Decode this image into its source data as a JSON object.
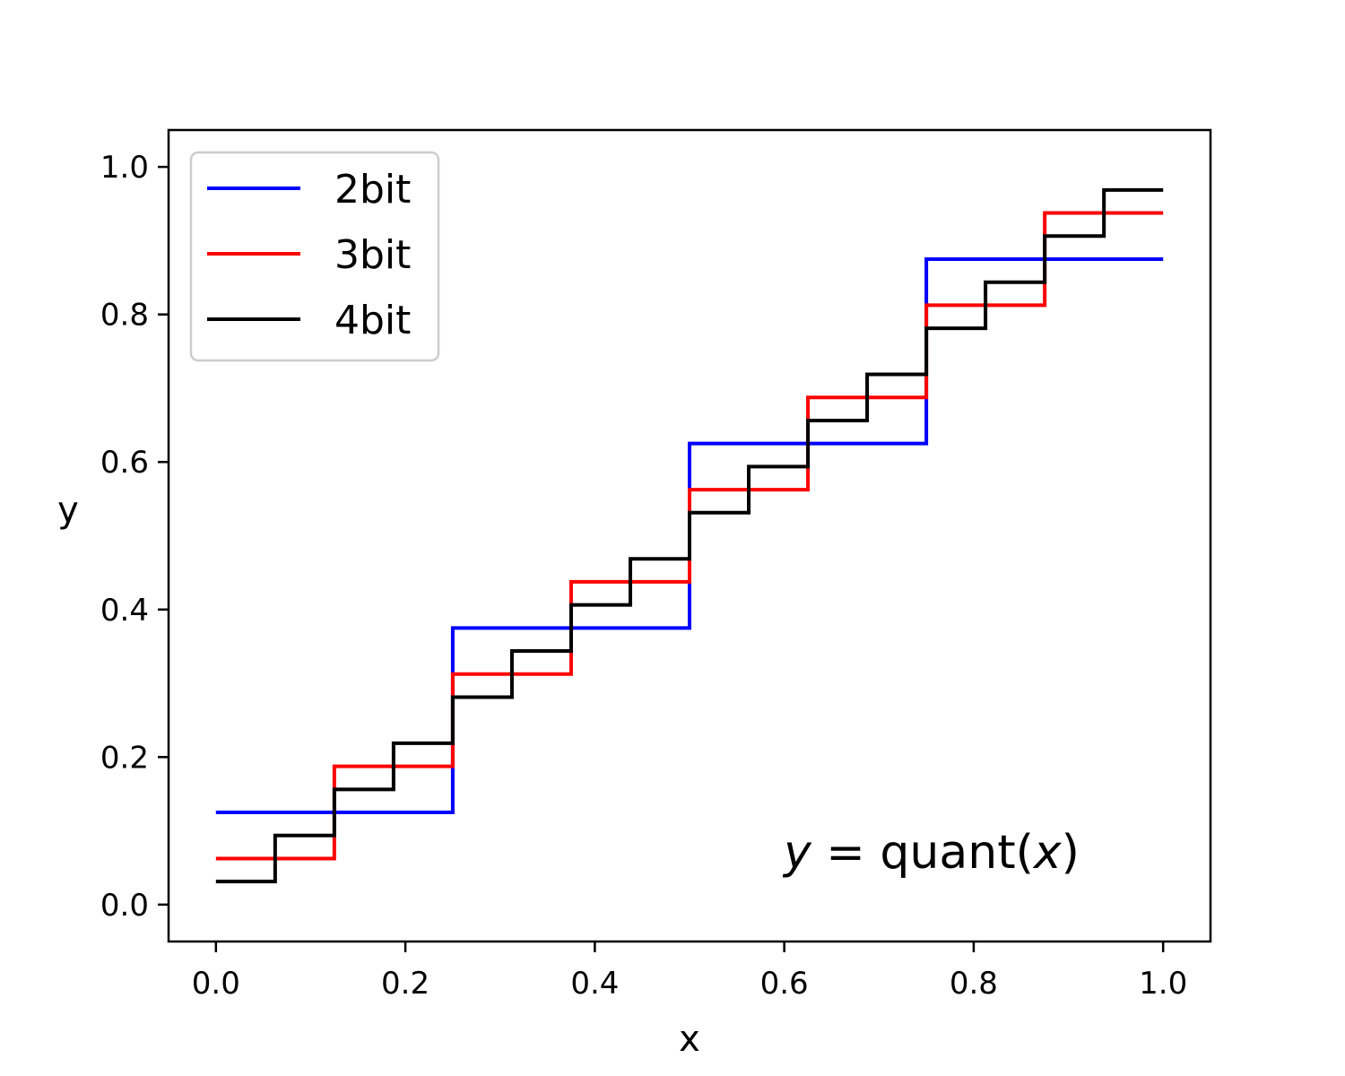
{
  "chart_data": {
    "type": "line",
    "drawstyle": "steps-post",
    "title": "",
    "xlabel": "x",
    "ylabel": "y",
    "xlim": [
      -0.05,
      1.05
    ],
    "ylim": [
      -0.05,
      1.05
    ],
    "xticks": [
      0.0,
      0.2,
      0.4,
      0.6,
      0.8,
      1.0
    ],
    "xtick_labels": [
      "0.0",
      "0.2",
      "0.4",
      "0.6",
      "0.8",
      "1.0"
    ],
    "yticks": [
      0.0,
      0.2,
      0.4,
      0.6,
      0.8,
      1.0
    ],
    "ytick_labels": [
      "0.0",
      "0.2",
      "0.4",
      "0.6",
      "0.8",
      "1.0"
    ],
    "grid": false,
    "legend_position": "top-left",
    "annotation": {
      "var": "y",
      "eq": " = quant(",
      "arg": "x",
      "close": ")",
      "position": "bottom-right"
    },
    "series": [
      {
        "name": "2bit",
        "color": "#0000ff",
        "x": [
          0.0,
          0.25,
          0.5,
          0.75,
          1.0
        ],
        "y": [
          0.125,
          0.375,
          0.625,
          0.875,
          0.875
        ]
      },
      {
        "name": "3bit",
        "color": "#ff0000",
        "x": [
          0.0,
          0.125,
          0.25,
          0.375,
          0.5,
          0.625,
          0.75,
          0.875,
          1.0
        ],
        "y": [
          0.0625,
          0.1875,
          0.3125,
          0.4375,
          0.5625,
          0.6875,
          0.8125,
          0.9375,
          0.9375
        ]
      },
      {
        "name": "4bit",
        "color": "#000000",
        "x": [
          0.0,
          0.0625,
          0.125,
          0.1875,
          0.25,
          0.3125,
          0.375,
          0.4375,
          0.5,
          0.5625,
          0.625,
          0.6875,
          0.75,
          0.8125,
          0.875,
          0.9375,
          1.0
        ],
        "y": [
          0.03125,
          0.09375,
          0.15625,
          0.21875,
          0.28125,
          0.34375,
          0.40625,
          0.46875,
          0.53125,
          0.59375,
          0.65625,
          0.71875,
          0.78125,
          0.84375,
          0.90625,
          0.96875,
          0.96875
        ]
      }
    ]
  }
}
